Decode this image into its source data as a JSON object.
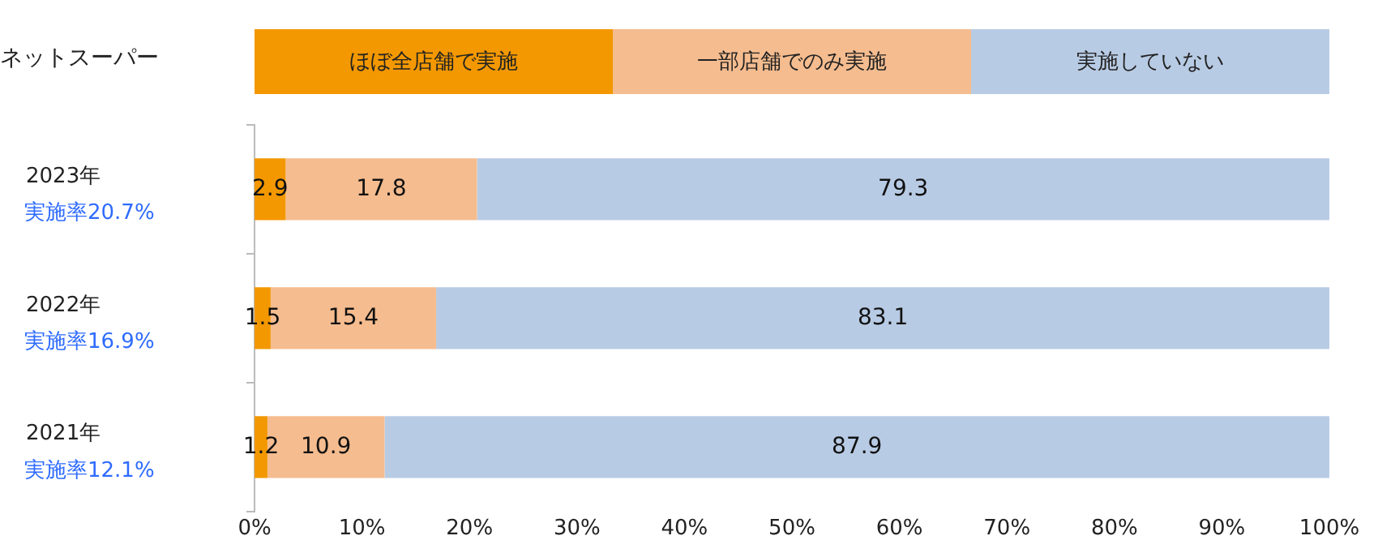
{
  "chart_data": {
    "type": "bar",
    "orientation": "horizontal",
    "stacked": true,
    "title": "ネットスーパー",
    "categories": [
      "2023年",
      "2022年",
      "2021年"
    ],
    "series": [
      {
        "name": "ほぼ全店舗で実施",
        "color": "#f39800",
        "values": [
          2.9,
          1.5,
          1.2
        ]
      },
      {
        "name": "一部店舗でのみ実施",
        "color": "#f5bc8f",
        "values": [
          17.8,
          15.4,
          10.9
        ]
      },
      {
        "name": "実施していない",
        "color": "#b8cbe4",
        "values": [
          79.3,
          83.1,
          87.9
        ]
      }
    ],
    "annotations": [
      "実施率20.7%",
      "実施率16.9%",
      "実施率12.1%"
    ],
    "xlim": [
      0,
      100
    ],
    "xticks": [
      {
        "value": 0,
        "label": "0%"
      },
      {
        "value": 10,
        "label": "10%"
      },
      {
        "value": 20,
        "label": "20%"
      },
      {
        "value": 30,
        "label": "30%"
      },
      {
        "value": 40,
        "label": "40%"
      },
      {
        "value": 50,
        "label": "50%"
      },
      {
        "value": 60,
        "label": "60%"
      },
      {
        "value": 70,
        "label": "70%"
      },
      {
        "value": 80,
        "label": "80%"
      },
      {
        "value": 90,
        "label": "90%"
      },
      {
        "value": 100,
        "label": "100%"
      }
    ],
    "data_labels": true,
    "legend": "top",
    "grid": false
  }
}
